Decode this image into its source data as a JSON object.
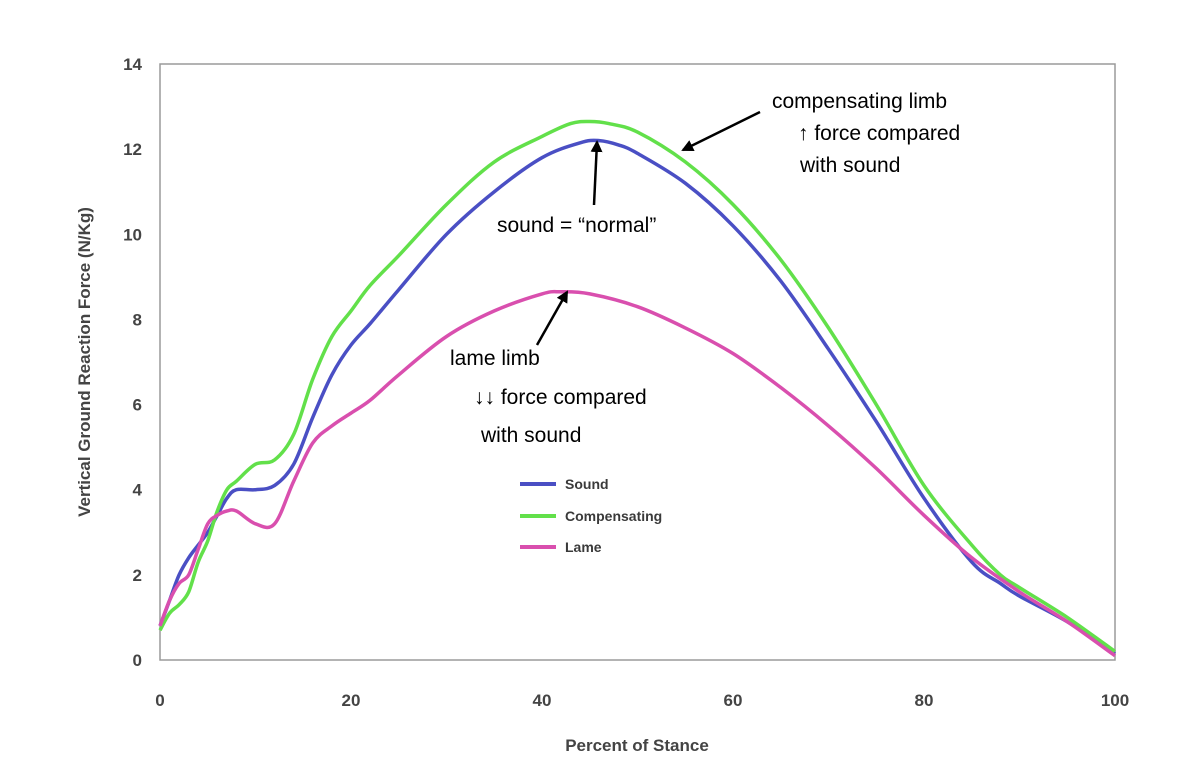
{
  "chart_data": {
    "type": "line",
    "title": "",
    "xlabel": "Percent of Stance",
    "ylabel": "Vertical Ground Reaction Force (N/Kg)",
    "xlim": [
      0,
      100
    ],
    "ylim": [
      0,
      14
    ],
    "x_ticks": [
      0,
      20,
      40,
      60,
      80,
      100
    ],
    "y_ticks": [
      0,
      2,
      4,
      6,
      8,
      10,
      12,
      14
    ],
    "grid": false,
    "legend_position": "center-left",
    "series": [
      {
        "name": "Sound",
        "color": "#4a4fc4",
        "x": [
          0,
          1,
          2,
          3,
          4,
          5,
          6,
          7,
          8,
          10,
          12,
          14,
          16,
          18,
          20,
          22,
          25,
          30,
          35,
          40,
          44,
          46,
          48,
          50,
          55,
          60,
          65,
          70,
          75,
          80,
          85,
          88,
          90,
          95,
          100
        ],
        "y": [
          0.8,
          1.4,
          2.0,
          2.4,
          2.7,
          3.0,
          3.4,
          3.8,
          4.0,
          4.0,
          4.1,
          4.6,
          5.7,
          6.7,
          7.4,
          7.9,
          8.7,
          10.0,
          11.0,
          11.8,
          12.15,
          12.2,
          12.1,
          11.9,
          11.2,
          10.2,
          8.9,
          7.3,
          5.6,
          3.8,
          2.3,
          1.8,
          1.5,
          0.9,
          0.15
        ]
      },
      {
        "name": "Compensating",
        "color": "#62e04a",
        "x": [
          0,
          1,
          2,
          3,
          4,
          5,
          6,
          7,
          8,
          10,
          12,
          14,
          16,
          18,
          20,
          22,
          25,
          30,
          35,
          40,
          43,
          45,
          47,
          50,
          55,
          60,
          65,
          70,
          75,
          80,
          85,
          88,
          90,
          95,
          100
        ],
        "y": [
          0.7,
          1.1,
          1.3,
          1.6,
          2.3,
          2.8,
          3.5,
          4.0,
          4.2,
          4.6,
          4.7,
          5.3,
          6.6,
          7.6,
          8.2,
          8.8,
          9.5,
          10.7,
          11.7,
          12.3,
          12.6,
          12.65,
          12.6,
          12.4,
          11.7,
          10.7,
          9.4,
          7.8,
          6.0,
          4.1,
          2.7,
          2.0,
          1.7,
          1.0,
          0.2
        ]
      },
      {
        "name": "Lame",
        "color": "#d94fae",
        "x": [
          0,
          1,
          2,
          3,
          4,
          5,
          6,
          7,
          8,
          10,
          12,
          14,
          16,
          18,
          20,
          22,
          25,
          30,
          35,
          40,
          42,
          45,
          50,
          55,
          60,
          65,
          70,
          75,
          80,
          85,
          90,
          95,
          100
        ],
        "y": [
          0.8,
          1.4,
          1.8,
          2.0,
          2.6,
          3.2,
          3.4,
          3.5,
          3.5,
          3.2,
          3.2,
          4.2,
          5.1,
          5.5,
          5.8,
          6.1,
          6.7,
          7.6,
          8.2,
          8.6,
          8.65,
          8.6,
          8.3,
          7.8,
          7.2,
          6.4,
          5.5,
          4.5,
          3.4,
          2.4,
          1.6,
          0.9,
          0.1
        ]
      }
    ],
    "annotations": [
      {
        "lines": [
          "compensating limb",
          "↑ force compared",
          "with sound"
        ]
      },
      {
        "lines": [
          "sound = “normal”"
        ]
      },
      {
        "lines": [
          "lame limb",
          "↓↓ force compared",
          "with sound"
        ]
      }
    ]
  }
}
